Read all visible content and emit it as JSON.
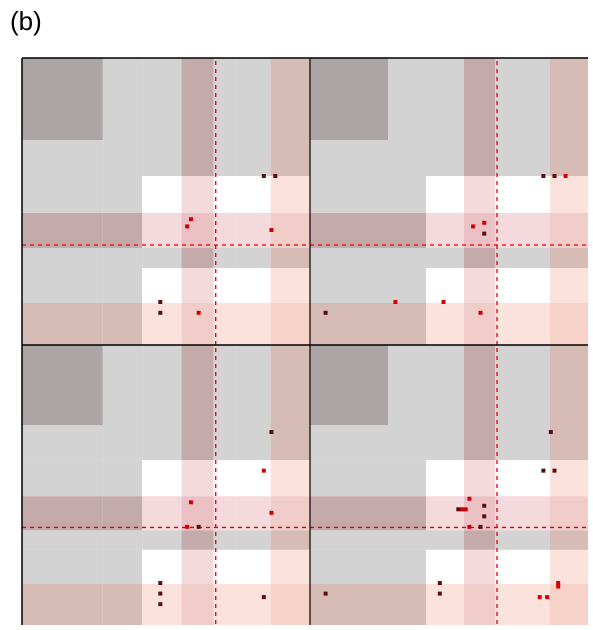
{
  "panel_label": "(b)",
  "colors": {
    "gray_band": "#d3d3d3",
    "gray_dark": "#aba5a5",
    "rose_band": "#f4dadd",
    "peach_band": "#fbe2dc",
    "rose_cross": "#ecc1c6",
    "peach_cross": "#f6d2c9",
    "gray_rose": "#c4aaab",
    "gray_peach": "#d6bcb5",
    "rose_peach": "#f0cdc9",
    "dashed_line": "#e00000",
    "grid_line": "#000000",
    "dot_dark": "#5a0f0a",
    "dot_red": "#d40000"
  },
  "subplots": [
    {
      "name": "top-left",
      "dots": [
        {
          "col": 5.2,
          "row": 2.0,
          "tone": "dark"
        },
        {
          "col": 5.5,
          "row": 2.0,
          "tone": "dark"
        },
        {
          "col": 3.3,
          "row": 3.2,
          "tone": "red"
        },
        {
          "col": 3.2,
          "row": 3.4,
          "tone": "red"
        },
        {
          "col": 5.4,
          "row": 3.5,
          "tone": "red"
        },
        {
          "col": 2.5,
          "row": 5.5,
          "tone": "dark"
        },
        {
          "col": 2.5,
          "row": 5.8,
          "tone": "dark"
        },
        {
          "col": 3.5,
          "row": 5.8,
          "tone": "red"
        }
      ]
    },
    {
      "name": "top-right",
      "dots": [
        {
          "col": 5.2,
          "row": 2.0,
          "tone": "dark"
        },
        {
          "col": 5.5,
          "row": 2.0,
          "tone": "dark"
        },
        {
          "col": 5.8,
          "row": 2.0,
          "tone": "red"
        },
        {
          "col": 3.6,
          "row": 3.3,
          "tone": "red"
        },
        {
          "col": 3.3,
          "row": 3.4,
          "tone": "red"
        },
        {
          "col": 3.6,
          "row": 3.6,
          "tone": "dark"
        },
        {
          "col": 1.2,
          "row": 5.5,
          "tone": "red"
        },
        {
          "col": 2.5,
          "row": 5.5,
          "tone": "red"
        },
        {
          "col": 0.2,
          "row": 5.8,
          "tone": "dark"
        },
        {
          "col": 3.5,
          "row": 5.8,
          "tone": "red"
        }
      ]
    },
    {
      "name": "bottom-left",
      "dots": [
        {
          "col": 5.4,
          "row": 1.2,
          "tone": "dark"
        },
        {
          "col": 5.2,
          "row": 2.3,
          "tone": "red"
        },
        {
          "col": 3.3,
          "row": 3.2,
          "tone": "red"
        },
        {
          "col": 5.4,
          "row": 3.5,
          "tone": "red"
        },
        {
          "col": 3.2,
          "row": 3.9,
          "tone": "red"
        },
        {
          "col": 3.5,
          "row": 3.9,
          "tone": "dark"
        },
        {
          "col": 2.5,
          "row": 5.5,
          "tone": "dark"
        },
        {
          "col": 2.5,
          "row": 5.8,
          "tone": "dark"
        },
        {
          "col": 2.5,
          "row": 6.1,
          "tone": "dark"
        },
        {
          "col": 5.2,
          "row": 5.9,
          "tone": "dark"
        }
      ]
    },
    {
      "name": "bottom-right",
      "dots": [
        {
          "col": 5.4,
          "row": 1.2,
          "tone": "dark"
        },
        {
          "col": 5.2,
          "row": 2.3,
          "tone": "dark"
        },
        {
          "col": 5.5,
          "row": 2.3,
          "tone": "dark"
        },
        {
          "col": 3.2,
          "row": 3.1,
          "tone": "red"
        },
        {
          "col": 3.6,
          "row": 3.3,
          "tone": "dark"
        },
        {
          "col": 3.6,
          "row": 3.6,
          "tone": "dark"
        },
        {
          "col": 3.0,
          "row": 3.4,
          "tone": "red"
        },
        {
          "col": 3.1,
          "row": 3.4,
          "tone": "red"
        },
        {
          "col": 2.9,
          "row": 3.4,
          "tone": "dark"
        },
        {
          "col": 3.2,
          "row": 3.9,
          "tone": "red"
        },
        {
          "col": 3.5,
          "row": 3.9,
          "tone": "dark"
        },
        {
          "col": 2.4,
          "row": 5.5,
          "tone": "dark"
        },
        {
          "col": 2.4,
          "row": 5.8,
          "tone": "dark"
        },
        {
          "col": 0.2,
          "row": 5.8,
          "tone": "dark"
        },
        {
          "col": 5.6,
          "row": 5.5,
          "tone": "red"
        },
        {
          "col": 5.6,
          "row": 5.6,
          "tone": "red"
        },
        {
          "col": 5.1,
          "row": 5.9,
          "tone": "red"
        },
        {
          "col": 5.3,
          "row": 5.9,
          "tone": "red"
        }
      ]
    }
  ]
}
